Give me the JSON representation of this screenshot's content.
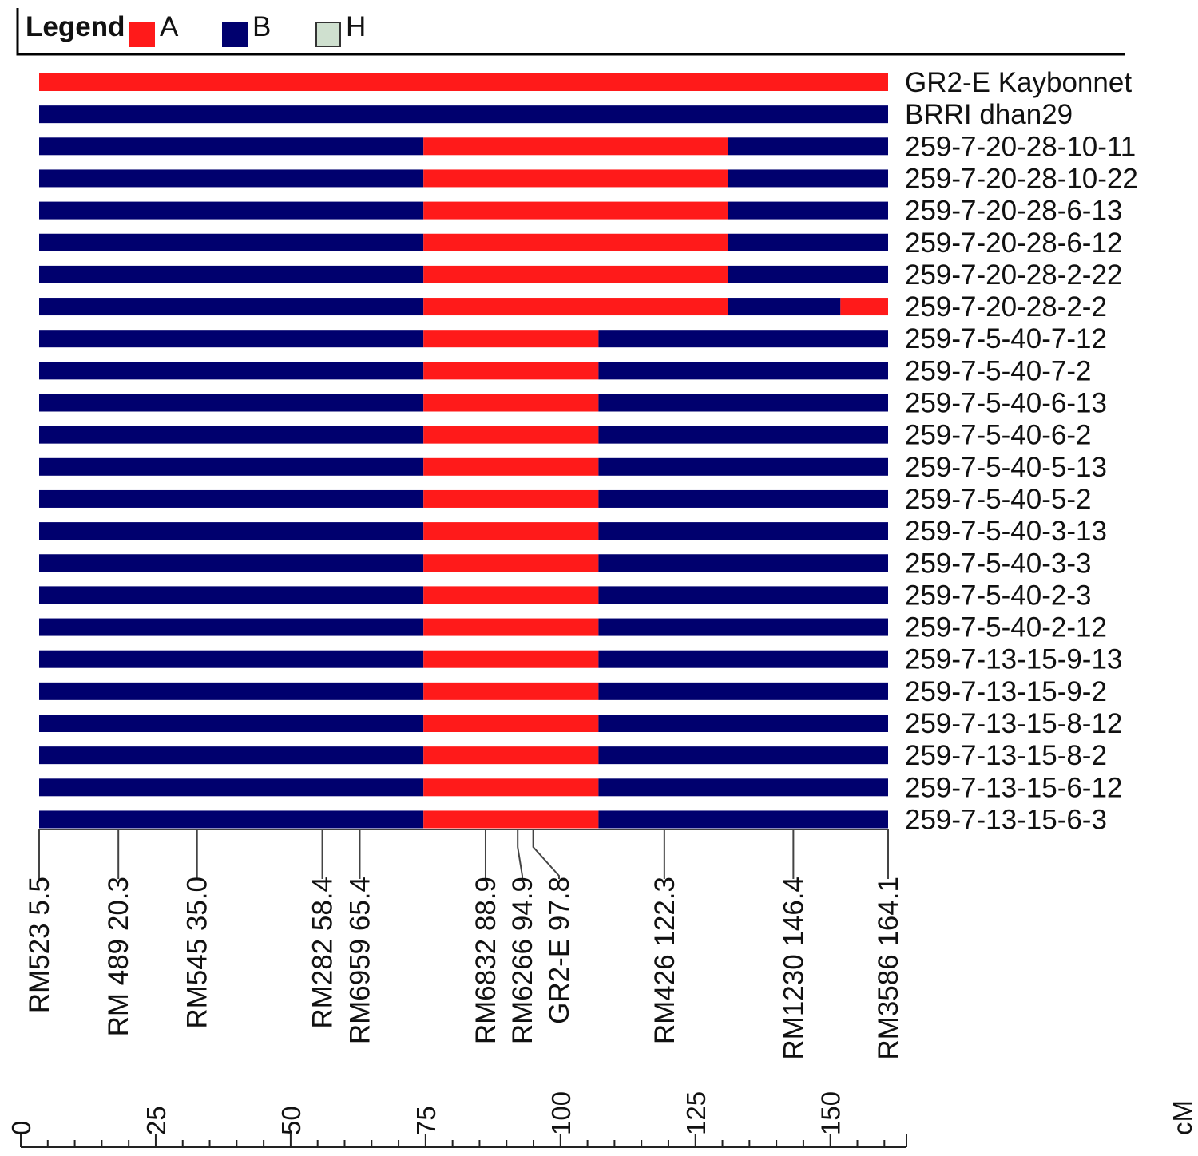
{
  "chart_data": {
    "type": "graphical-genotype",
    "legend": {
      "title": "Legend",
      "items": [
        {
          "key": "A",
          "label": "A",
          "color": "#ff1a1a"
        },
        {
          "key": "B",
          "label": "B",
          "color": "#00006e"
        },
        {
          "key": "H",
          "label": "H",
          "color": "#cfe0cf"
        }
      ]
    },
    "chromosome": {
      "start_cM": 5.5,
      "end_cM": 164.1
    },
    "markers": [
      {
        "name": "RM523",
        "pos_label": "5.5",
        "cM": 5.5
      },
      {
        "name": "RM 489",
        "pos_label": "20.3",
        "cM": 20.3
      },
      {
        "name": "RM545",
        "pos_label": "35.0",
        "cM": 35.0
      },
      {
        "name": "RM282",
        "pos_label": "58.4",
        "cM": 58.4
      },
      {
        "name": "RM6959",
        "pos_label": "65.4",
        "cM": 65.4
      },
      {
        "name": "RM6832",
        "pos_label": "88.9",
        "cM": 88.9
      },
      {
        "name": "RM6266",
        "pos_label": "94.9",
        "cM": 94.9
      },
      {
        "name": "GR2-E",
        "pos_label": "97.8",
        "cM": 97.8
      },
      {
        "name": "RM426",
        "pos_label": "122.3",
        "cM": 122.3
      },
      {
        "name": "RM1230",
        "pos_label": "146.4",
        "cM": 146.4
      },
      {
        "name": "RM3586",
        "pos_label": "164.1",
        "cM": 164.1
      }
    ],
    "genotypes": [
      {
        "name": "GR2-E Kaybonnet",
        "segments": [
          {
            "start": 5.5,
            "end": 164.1,
            "g": "A"
          }
        ]
      },
      {
        "name": "BRRI dhan29",
        "segments": [
          {
            "start": 5.5,
            "end": 164.1,
            "g": "B"
          }
        ]
      },
      {
        "name": "259-7-20-28-10-11",
        "segments": [
          {
            "start": 5.5,
            "end": 77.3,
            "g": "B"
          },
          {
            "start": 77.3,
            "end": 134.2,
            "g": "A"
          },
          {
            "start": 134.2,
            "end": 164.1,
            "g": "B"
          }
        ]
      },
      {
        "name": "259-7-20-28-10-22",
        "segments": [
          {
            "start": 5.5,
            "end": 77.3,
            "g": "B"
          },
          {
            "start": 77.3,
            "end": 134.2,
            "g": "A"
          },
          {
            "start": 134.2,
            "end": 164.1,
            "g": "B"
          }
        ]
      },
      {
        "name": "259-7-20-28-6-13",
        "segments": [
          {
            "start": 5.5,
            "end": 77.3,
            "g": "B"
          },
          {
            "start": 77.3,
            "end": 134.2,
            "g": "A"
          },
          {
            "start": 134.2,
            "end": 164.1,
            "g": "B"
          }
        ]
      },
      {
        "name": "259-7-20-28-6-12",
        "segments": [
          {
            "start": 5.5,
            "end": 77.3,
            "g": "B"
          },
          {
            "start": 77.3,
            "end": 134.2,
            "g": "A"
          },
          {
            "start": 134.2,
            "end": 164.1,
            "g": "B"
          }
        ]
      },
      {
        "name": "259-7-20-28-2-22",
        "segments": [
          {
            "start": 5.5,
            "end": 77.3,
            "g": "B"
          },
          {
            "start": 77.3,
            "end": 134.2,
            "g": "A"
          },
          {
            "start": 134.2,
            "end": 164.1,
            "g": "B"
          }
        ]
      },
      {
        "name": "259-7-20-28-2-2",
        "segments": [
          {
            "start": 5.5,
            "end": 77.3,
            "g": "B"
          },
          {
            "start": 77.3,
            "end": 134.2,
            "g": "A"
          },
          {
            "start": 134.2,
            "end": 155.2,
            "g": "B"
          },
          {
            "start": 155.2,
            "end": 164.1,
            "g": "A"
          }
        ]
      },
      {
        "name": "259-7-5-40-7-12",
        "segments": [
          {
            "start": 5.5,
            "end": 77.3,
            "g": "B"
          },
          {
            "start": 77.3,
            "end": 110.0,
            "g": "A"
          },
          {
            "start": 110.0,
            "end": 164.1,
            "g": "B"
          }
        ]
      },
      {
        "name": "259-7-5-40-7-2",
        "segments": [
          {
            "start": 5.5,
            "end": 77.3,
            "g": "B"
          },
          {
            "start": 77.3,
            "end": 110.0,
            "g": "A"
          },
          {
            "start": 110.0,
            "end": 164.1,
            "g": "B"
          }
        ]
      },
      {
        "name": "259-7-5-40-6-13",
        "segments": [
          {
            "start": 5.5,
            "end": 77.3,
            "g": "B"
          },
          {
            "start": 77.3,
            "end": 110.0,
            "g": "A"
          },
          {
            "start": 110.0,
            "end": 164.1,
            "g": "B"
          }
        ]
      },
      {
        "name": "259-7-5-40-6-2",
        "segments": [
          {
            "start": 5.5,
            "end": 77.3,
            "g": "B"
          },
          {
            "start": 77.3,
            "end": 110.0,
            "g": "A"
          },
          {
            "start": 110.0,
            "end": 164.1,
            "g": "B"
          }
        ]
      },
      {
        "name": "259-7-5-40-5-13",
        "segments": [
          {
            "start": 5.5,
            "end": 77.3,
            "g": "B"
          },
          {
            "start": 77.3,
            "end": 110.0,
            "g": "A"
          },
          {
            "start": 110.0,
            "end": 164.1,
            "g": "B"
          }
        ]
      },
      {
        "name": "259-7-5-40-5-2",
        "segments": [
          {
            "start": 5.5,
            "end": 77.3,
            "g": "B"
          },
          {
            "start": 77.3,
            "end": 110.0,
            "g": "A"
          },
          {
            "start": 110.0,
            "end": 164.1,
            "g": "B"
          }
        ]
      },
      {
        "name": "259-7-5-40-3-13",
        "segments": [
          {
            "start": 5.5,
            "end": 77.3,
            "g": "B"
          },
          {
            "start": 77.3,
            "end": 110.0,
            "g": "A"
          },
          {
            "start": 110.0,
            "end": 164.1,
            "g": "B"
          }
        ]
      },
      {
        "name": "259-7-5-40-3-3",
        "segments": [
          {
            "start": 5.5,
            "end": 77.3,
            "g": "B"
          },
          {
            "start": 77.3,
            "end": 110.0,
            "g": "A"
          },
          {
            "start": 110.0,
            "end": 164.1,
            "g": "B"
          }
        ]
      },
      {
        "name": "259-7-5-40-2-3",
        "segments": [
          {
            "start": 5.5,
            "end": 77.3,
            "g": "B"
          },
          {
            "start": 77.3,
            "end": 110.0,
            "g": "A"
          },
          {
            "start": 110.0,
            "end": 164.1,
            "g": "B"
          }
        ]
      },
      {
        "name": "259-7-5-40-2-12",
        "segments": [
          {
            "start": 5.5,
            "end": 77.3,
            "g": "B"
          },
          {
            "start": 77.3,
            "end": 110.0,
            "g": "A"
          },
          {
            "start": 110.0,
            "end": 164.1,
            "g": "B"
          }
        ]
      },
      {
        "name": "259-7-13-15-9-13",
        "segments": [
          {
            "start": 5.5,
            "end": 77.3,
            "g": "B"
          },
          {
            "start": 77.3,
            "end": 110.0,
            "g": "A"
          },
          {
            "start": 110.0,
            "end": 164.1,
            "g": "B"
          }
        ]
      },
      {
        "name": "259-7-13-15-9-2",
        "segments": [
          {
            "start": 5.5,
            "end": 77.3,
            "g": "B"
          },
          {
            "start": 77.3,
            "end": 110.0,
            "g": "A"
          },
          {
            "start": 110.0,
            "end": 164.1,
            "g": "B"
          }
        ]
      },
      {
        "name": "259-7-13-15-8-12",
        "segments": [
          {
            "start": 5.5,
            "end": 77.3,
            "g": "B"
          },
          {
            "start": 77.3,
            "end": 110.0,
            "g": "A"
          },
          {
            "start": 110.0,
            "end": 164.1,
            "g": "B"
          }
        ]
      },
      {
        "name": "259-7-13-15-8-2",
        "segments": [
          {
            "start": 5.5,
            "end": 77.3,
            "g": "B"
          },
          {
            "start": 77.3,
            "end": 110.0,
            "g": "A"
          },
          {
            "start": 110.0,
            "end": 164.1,
            "g": "B"
          }
        ]
      },
      {
        "name": "259-7-13-15-6-12",
        "segments": [
          {
            "start": 5.5,
            "end": 77.3,
            "g": "B"
          },
          {
            "start": 77.3,
            "end": 110.0,
            "g": "A"
          },
          {
            "start": 110.0,
            "end": 164.1,
            "g": "B"
          }
        ]
      },
      {
        "name": "259-7-13-15-6-3",
        "segments": [
          {
            "start": 5.5,
            "end": 77.3,
            "g": "B"
          },
          {
            "start": 77.3,
            "end": 110.0,
            "g": "A"
          },
          {
            "start": 110.0,
            "end": 164.1,
            "g": "B"
          }
        ]
      }
    ],
    "scale": {
      "unit": "cM",
      "ticks": [
        0,
        25,
        50,
        75,
        100,
        125,
        150
      ],
      "minor_step": 5,
      "range": [
        0,
        164.1
      ]
    }
  }
}
